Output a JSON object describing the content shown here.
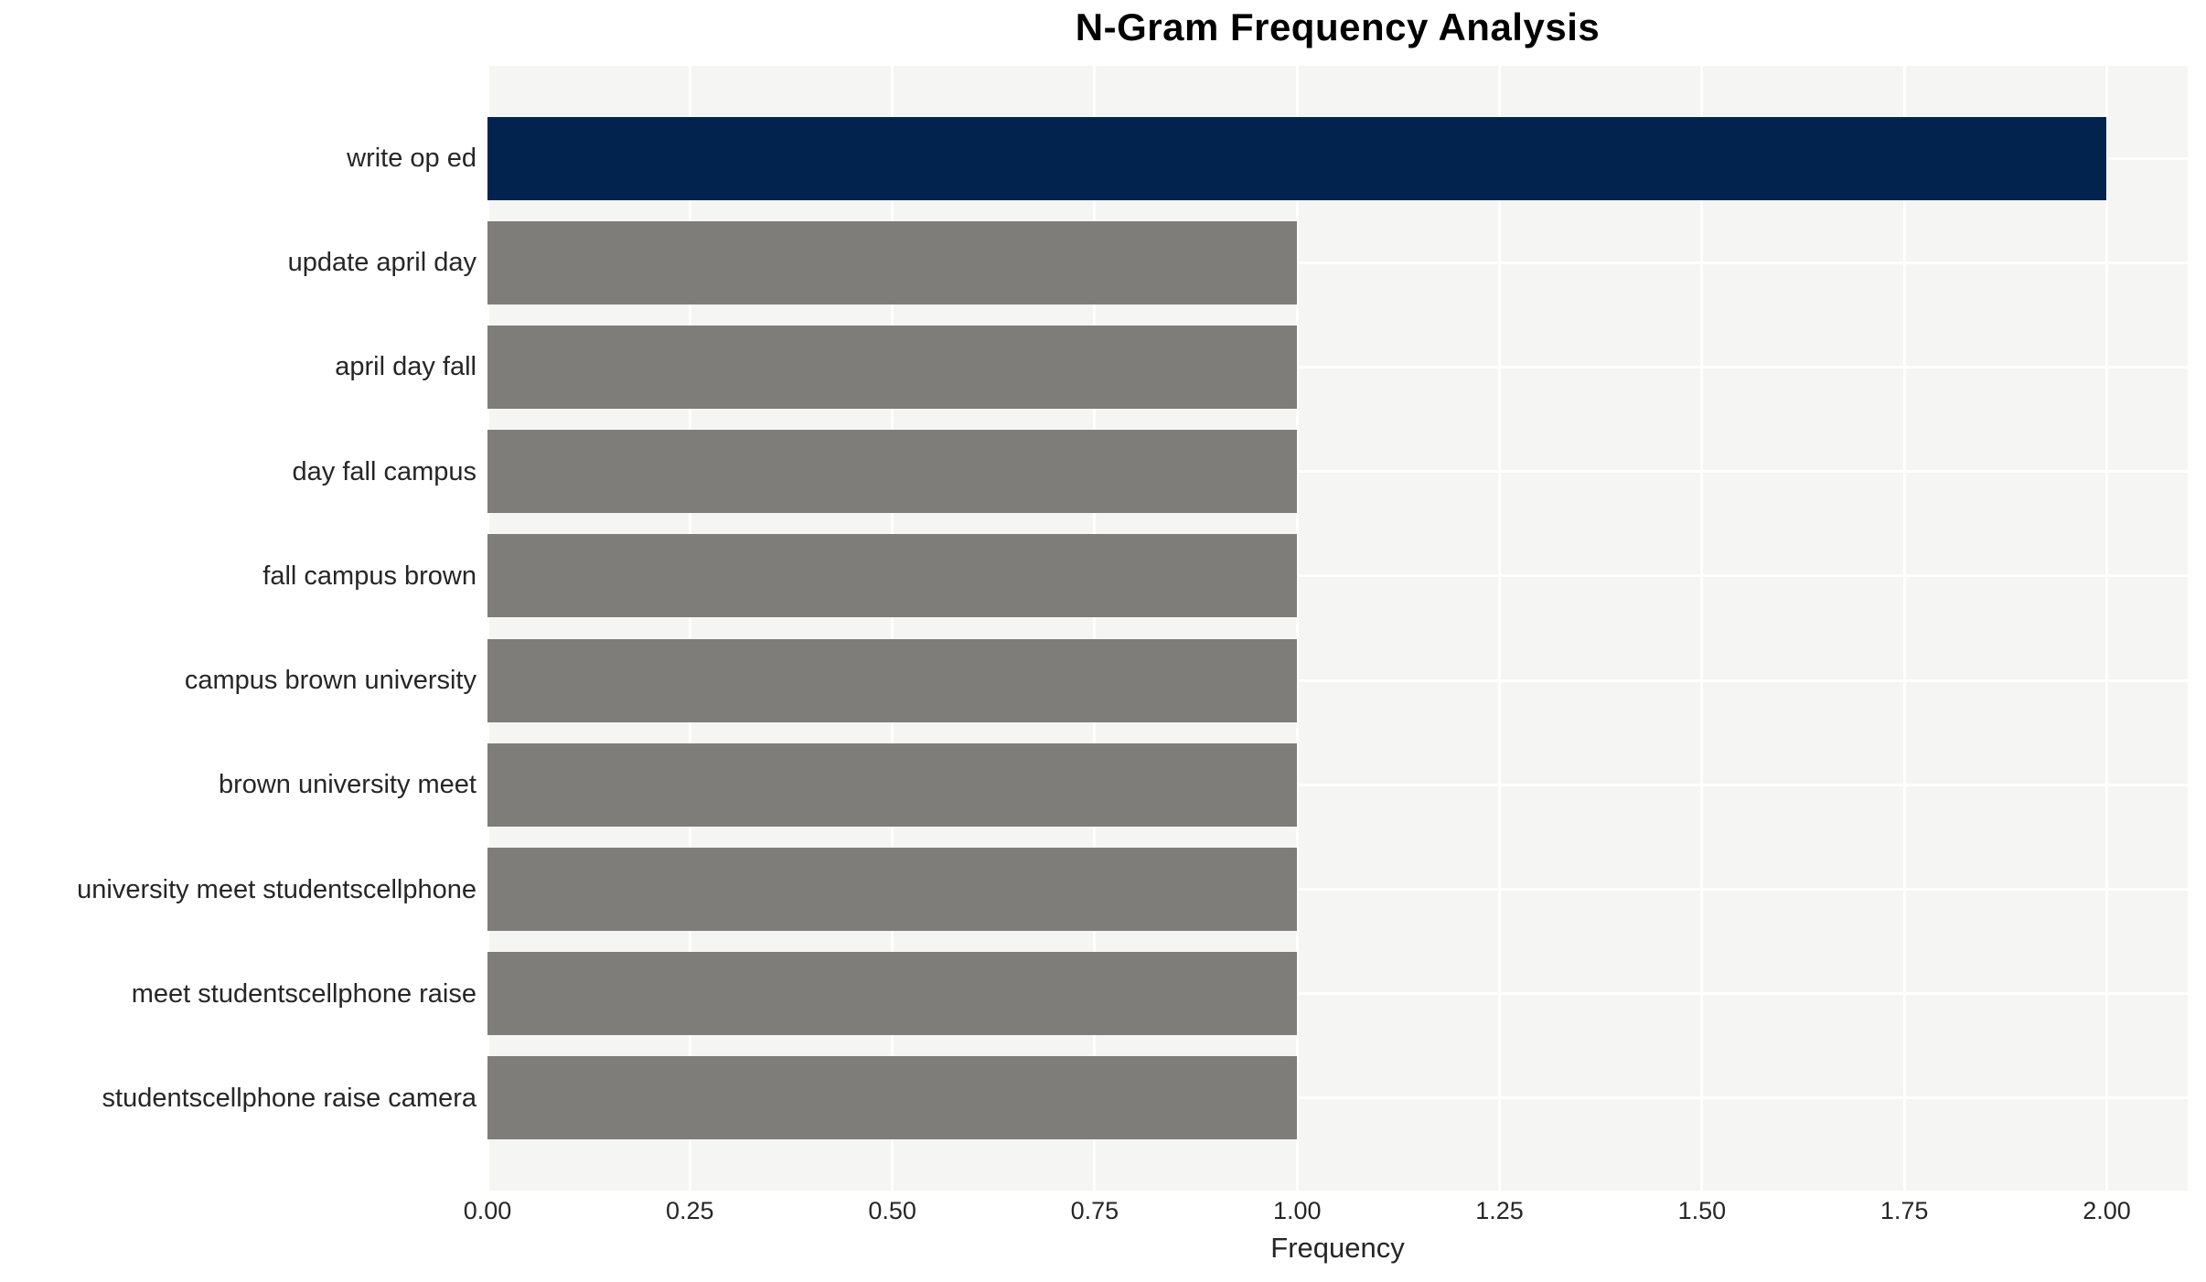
{
  "chart_data": {
    "type": "bar",
    "orientation": "horizontal",
    "title": "N-Gram Frequency Analysis",
    "xlabel": "Frequency",
    "ylabel": "",
    "categories": [
      "write op ed",
      "update april day",
      "april day fall",
      "day fall campus",
      "fall campus brown",
      "campus brown university",
      "brown university meet",
      "university meet studentscellphone",
      "meet studentscellphone raise",
      "studentscellphone raise camera"
    ],
    "values": [
      2,
      1,
      1,
      1,
      1,
      1,
      1,
      1,
      1,
      1
    ],
    "bar_colors": [
      "#02234e",
      "#7e7d79",
      "#7e7d79",
      "#7e7d79",
      "#7e7d79",
      "#7e7d79",
      "#7e7d79",
      "#7e7d79",
      "#7e7d79",
      "#7e7d79"
    ],
    "xlim": [
      0,
      2.1
    ],
    "xticks": [
      0,
      0.25,
      0.5,
      0.75,
      1,
      1.25,
      1.5,
      1.75,
      2
    ],
    "xtick_labels": [
      "0.00",
      "0.25",
      "0.50",
      "0.75",
      "1.00",
      "1.25",
      "1.50",
      "1.75",
      "2.00"
    ],
    "grid": "major gridlines on, white, at x ticks and category centers",
    "legend_position": "none",
    "colors": {
      "highlight_bar": "#02234e",
      "default_bar": "#7e7d79",
      "panel_background": "#f5f5f3",
      "gridline": "#ffffff",
      "title_text": "#000000",
      "label_text": "#262626"
    }
  }
}
